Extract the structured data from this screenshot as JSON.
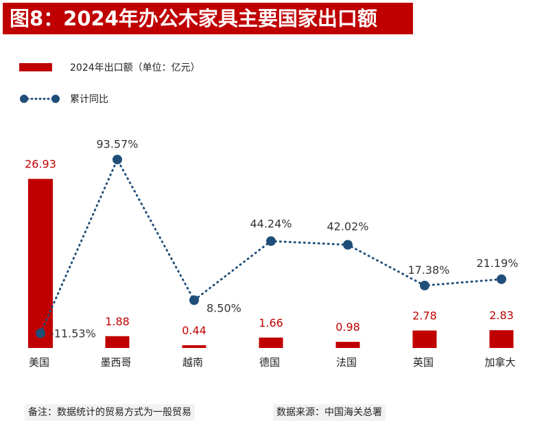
{
  "title": "图8：2024年办公木家具主要国家出口额",
  "legend": {
    "bar_label": "2024年出口额（单位：亿元）",
    "line_label": "累计同比"
  },
  "colors": {
    "bar": "#c00000",
    "line": "#1f4e79",
    "bar_label": "#c00000",
    "line_label": "#333333",
    "axis_text": "#222222"
  },
  "chart_data": {
    "type": "bar",
    "categories": [
      "美国",
      "墨西哥",
      "越南",
      "德国",
      "法国",
      "英国",
      "加拿大"
    ],
    "series": [
      {
        "name": "2024年出口额（单位：亿元）",
        "type": "bar",
        "values": [
          26.93,
          1.88,
          0.44,
          1.66,
          0.98,
          2.78,
          2.83
        ],
        "labels": [
          "26.93",
          "1.88",
          "0.44",
          "1.66",
          "0.98",
          "2.78",
          "2.83"
        ]
      },
      {
        "name": "累计同比",
        "type": "line",
        "values": [
          -11.53,
          93.57,
          8.5,
          44.24,
          42.02,
          17.38,
          21.19
        ],
        "labels": [
          "-11.53%",
          "93.57%",
          "8.50%",
          "44.24%",
          "42.02%",
          "17.38%",
          "21.19%"
        ]
      }
    ],
    "title": "图8：2024年办公木家具主要国家出口额",
    "xlabel": "",
    "ylabel": "",
    "ylim": [
      0,
      27
    ],
    "y2lim": [
      -15,
      95
    ],
    "grid": false,
    "legend_position": "top-left"
  },
  "notes": {
    "remark": "备注：数据统计的贸易方式为一般贸易",
    "source": "数据来源：中国海关总署"
  }
}
